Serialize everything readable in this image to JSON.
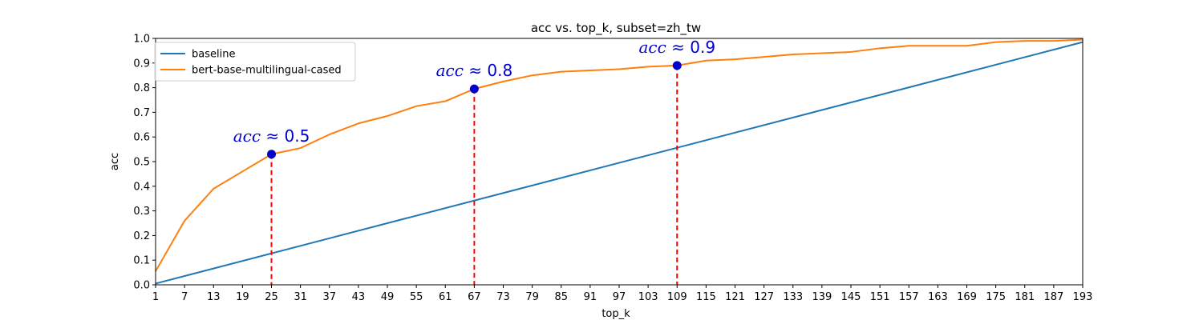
{
  "chart_data": {
    "type": "line",
    "title": "acc vs. top_k, subset=zh_tw",
    "xlabel": "top_k",
    "ylabel": "acc",
    "xlim": [
      1,
      193
    ],
    "ylim": [
      0,
      1.0
    ],
    "xticks": [
      1,
      7,
      13,
      19,
      25,
      31,
      37,
      43,
      49,
      55,
      61,
      67,
      73,
      79,
      85,
      91,
      97,
      103,
      109,
      115,
      121,
      127,
      133,
      139,
      145,
      151,
      157,
      163,
      169,
      175,
      181,
      187,
      193
    ],
    "yticks": [
      0.0,
      0.1,
      0.2,
      0.3,
      0.4,
      0.5,
      0.6,
      0.7,
      0.8,
      0.9,
      1.0
    ],
    "ytick_labels": [
      "0.0",
      "0.1",
      "0.2",
      "0.3",
      "0.4",
      "0.5",
      "0.6",
      "0.7",
      "0.8",
      "0.9",
      "1.0"
    ],
    "grid": false,
    "legend_position": "upper-left",
    "series": [
      {
        "name": "baseline",
        "color": "#1f77b4",
        "x": [
          1,
          193
        ],
        "y": [
          0.005,
          0.985
        ]
      },
      {
        "name": "bert-base-multilingual-cased",
        "color": "#ff7f0e",
        "x": [
          1,
          7,
          13,
          19,
          25,
          31,
          37,
          43,
          49,
          55,
          61,
          67,
          73,
          79,
          85,
          91,
          97,
          103,
          109,
          115,
          121,
          127,
          133,
          139,
          145,
          151,
          157,
          163,
          169,
          175,
          181,
          187,
          193
        ],
        "y": [
          0.055,
          0.26,
          0.39,
          0.46,
          0.53,
          0.555,
          0.61,
          0.655,
          0.685,
          0.725,
          0.745,
          0.795,
          0.825,
          0.85,
          0.865,
          0.87,
          0.875,
          0.885,
          0.89,
          0.91,
          0.915,
          0.925,
          0.935,
          0.94,
          0.945,
          0.96,
          0.97,
          0.97,
          0.97,
          0.985,
          0.99,
          0.99,
          0.995
        ]
      }
    ],
    "markers": [
      {
        "x": 25,
        "y": 0.53,
        "label_var": "acc",
        "label_op": " ≈ ",
        "label_val": "0.5"
      },
      {
        "x": 67,
        "y": 0.795,
        "label_var": "acc",
        "label_op": " ≈ ",
        "label_val": "0.8"
      },
      {
        "x": 109,
        "y": 0.89,
        "label_var": "acc",
        "label_op": " ≈ ",
        "label_val": "0.9"
      }
    ],
    "marker_color": "#0000cc",
    "dropline_color": "#ff0000",
    "annotation_color": "#0000cc"
  }
}
